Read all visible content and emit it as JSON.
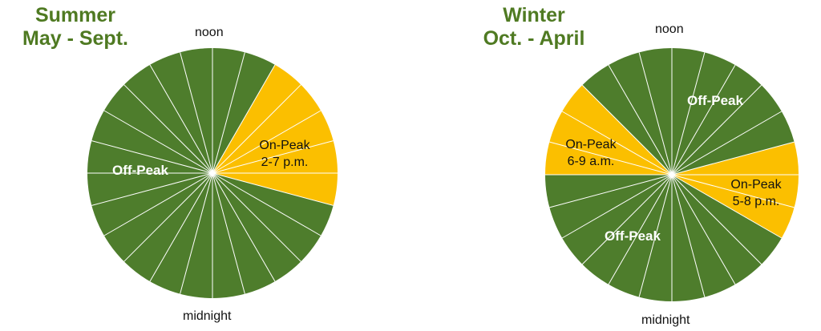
{
  "colors": {
    "off_peak": "#4e7d2c",
    "on_peak": "#fbbf00",
    "title": "#4f7a22"
  },
  "chart_data": [
    {
      "type": "pie",
      "title_line1": "Summer",
      "title_line2": "May - Sept.",
      "top_label": "noon",
      "bottom_label": "midnight",
      "hours": 24,
      "orientation": "noon at top, midnight at bottom, hours clockwise",
      "periods": [
        {
          "name": "Off-Peak",
          "category": "off_peak",
          "start_hour": 19,
          "end_hour": 38,
          "label_lines": [
            "Off-Peak"
          ],
          "label_bold": true
        },
        {
          "name": "On-Peak",
          "category": "on_peak",
          "start_hour": 14,
          "end_hour": 19,
          "label_lines": [
            "On-Peak",
            "2-7 p.m."
          ],
          "label_bold": false
        }
      ]
    },
    {
      "type": "pie",
      "title_line1": "Winter",
      "title_line2": "Oct. - April",
      "top_label": "noon",
      "bottom_label": "midnight",
      "hours": 24,
      "orientation": "noon at top, midnight at bottom, hours clockwise",
      "periods": [
        {
          "name": "On-Peak",
          "category": "on_peak",
          "start_hour": 6,
          "end_hour": 9,
          "label_lines": [
            "On-Peak",
            "6-9 a.m."
          ],
          "label_bold": false
        },
        {
          "name": "Off-Peak",
          "category": "off_peak",
          "start_hour": 9,
          "end_hour": 17,
          "label_lines": [
            "Off-Peak"
          ],
          "label_bold": true
        },
        {
          "name": "On-Peak",
          "category": "on_peak",
          "start_hour": 17,
          "end_hour": 20,
          "label_lines": [
            "On-Peak",
            "5-8 p.m."
          ],
          "label_bold": false
        },
        {
          "name": "Off-Peak",
          "category": "off_peak",
          "start_hour": 20,
          "end_hour": 30,
          "label_lines": [
            "Off-Peak"
          ],
          "label_bold": true
        }
      ]
    }
  ]
}
